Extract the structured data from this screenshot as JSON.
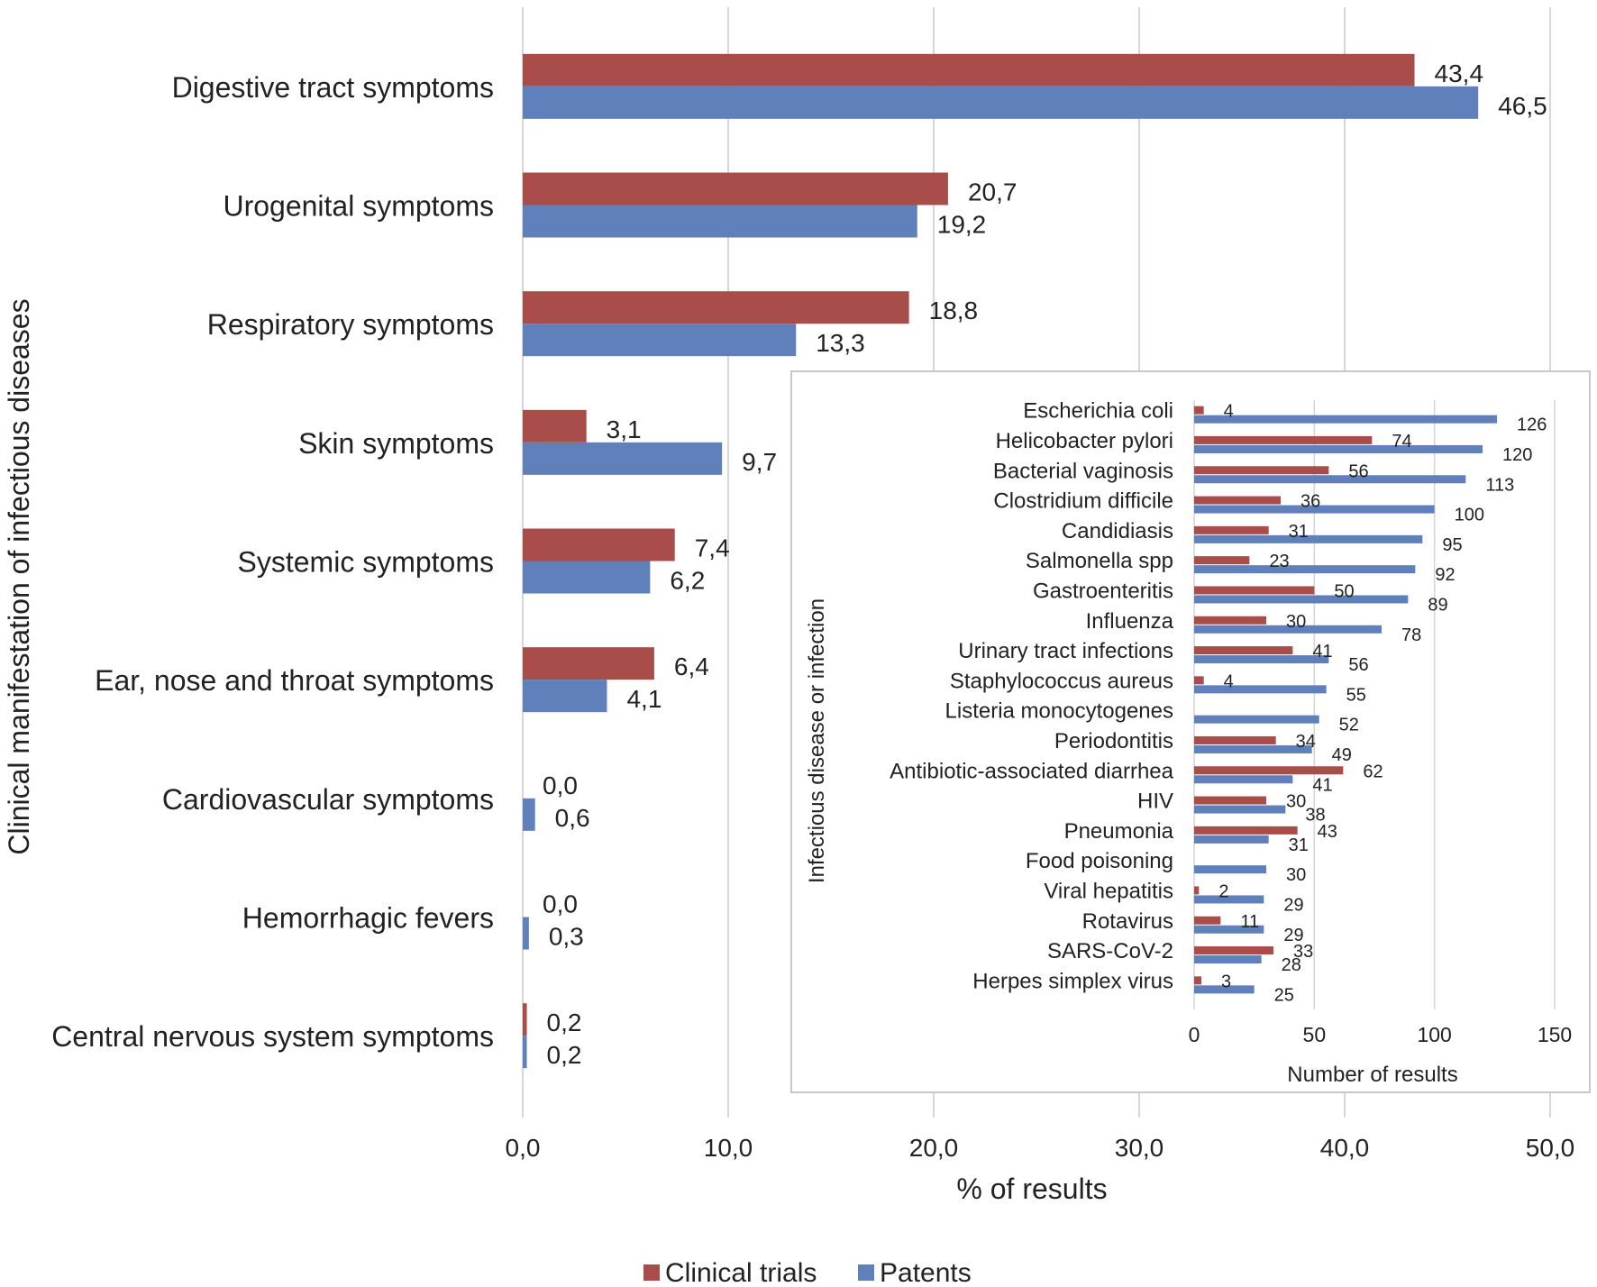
{
  "chart_data": [
    {
      "type": "bar",
      "orientation": "horizontal",
      "xlabel": "% of results",
      "ylabel": "Clinical manifestation of infectious diseases",
      "xlim": [
        0,
        50
      ],
      "xticks": [
        "0,0",
        "10,0",
        "20,0",
        "30,0",
        "40,0",
        "50,0"
      ],
      "grid": true,
      "legend_position": "bottom",
      "categories": [
        "Digestive tract symptoms",
        "Urogenital symptoms",
        "Respiratory symptoms",
        "Skin symptoms",
        "Systemic symptoms",
        "Ear, nose and throat symptoms",
        "Cardiovascular symptoms",
        "Hemorrhagic fevers",
        "Central nervous system symptoms"
      ],
      "series": [
        {
          "name": "Clinical trials",
          "color": "#a94d4b",
          "values": [
            43.4,
            20.7,
            18.8,
            3.1,
            7.4,
            6.4,
            0.0,
            0.0,
            0.2
          ],
          "labels": [
            "43,4",
            "20,7",
            "18,8",
            "3,1",
            "7,4",
            "6,4",
            "0,0",
            "0,0",
            "0,2"
          ]
        },
        {
          "name": "Patents",
          "color": "#5f80bb",
          "values": [
            46.5,
            19.2,
            13.3,
            9.7,
            6.2,
            4.1,
            0.6,
            0.3,
            0.2
          ],
          "labels": [
            "46,5",
            "19,2",
            "13,3",
            "9,7",
            "6,2",
            "4,1",
            "0,6",
            "0,3",
            "0,2"
          ]
        }
      ]
    },
    {
      "type": "bar",
      "orientation": "horizontal",
      "role": "inset",
      "xlabel": "Number of results",
      "ylabel": "Infectious disease or infection",
      "xlim": [
        0,
        150
      ],
      "xticks": [
        "0",
        "50",
        "100",
        "150"
      ],
      "grid": true,
      "categories": [
        "Escherichia coli",
        "Helicobacter pylori",
        "Bacterial vaginosis",
        "Clostridium difficile",
        "Candidiasis",
        "Salmonella spp",
        "Gastroenteritis",
        "Influenza",
        "Urinary tract infections",
        "Staphylococcus aureus",
        "Listeria monocytogenes",
        "Periodontitis",
        "Antibiotic-associated diarrhea",
        "HIV",
        "Pneumonia",
        "Food poisoning",
        "Viral hepatitis",
        "Rotavirus",
        "SARS-CoV-2",
        "Herpes simplex virus"
      ],
      "series": [
        {
          "name": "Clinical trials",
          "color": "#a94d4b",
          "values": [
            4,
            74,
            56,
            36,
            31,
            23,
            50,
            30,
            41,
            4,
            null,
            34,
            62,
            30,
            43,
            null,
            2,
            11,
            33,
            3
          ]
        },
        {
          "name": "Patents",
          "color": "#5f80bb",
          "values": [
            126,
            120,
            113,
            100,
            95,
            92,
            89,
            78,
            56,
            55,
            52,
            49,
            41,
            38,
            31,
            30,
            29,
            29,
            28,
            25
          ]
        }
      ]
    }
  ],
  "legend": [
    {
      "label": "Clinical trials",
      "color": "#a94d4b"
    },
    {
      "label": "Patents",
      "color": "#5f80bb"
    }
  ]
}
